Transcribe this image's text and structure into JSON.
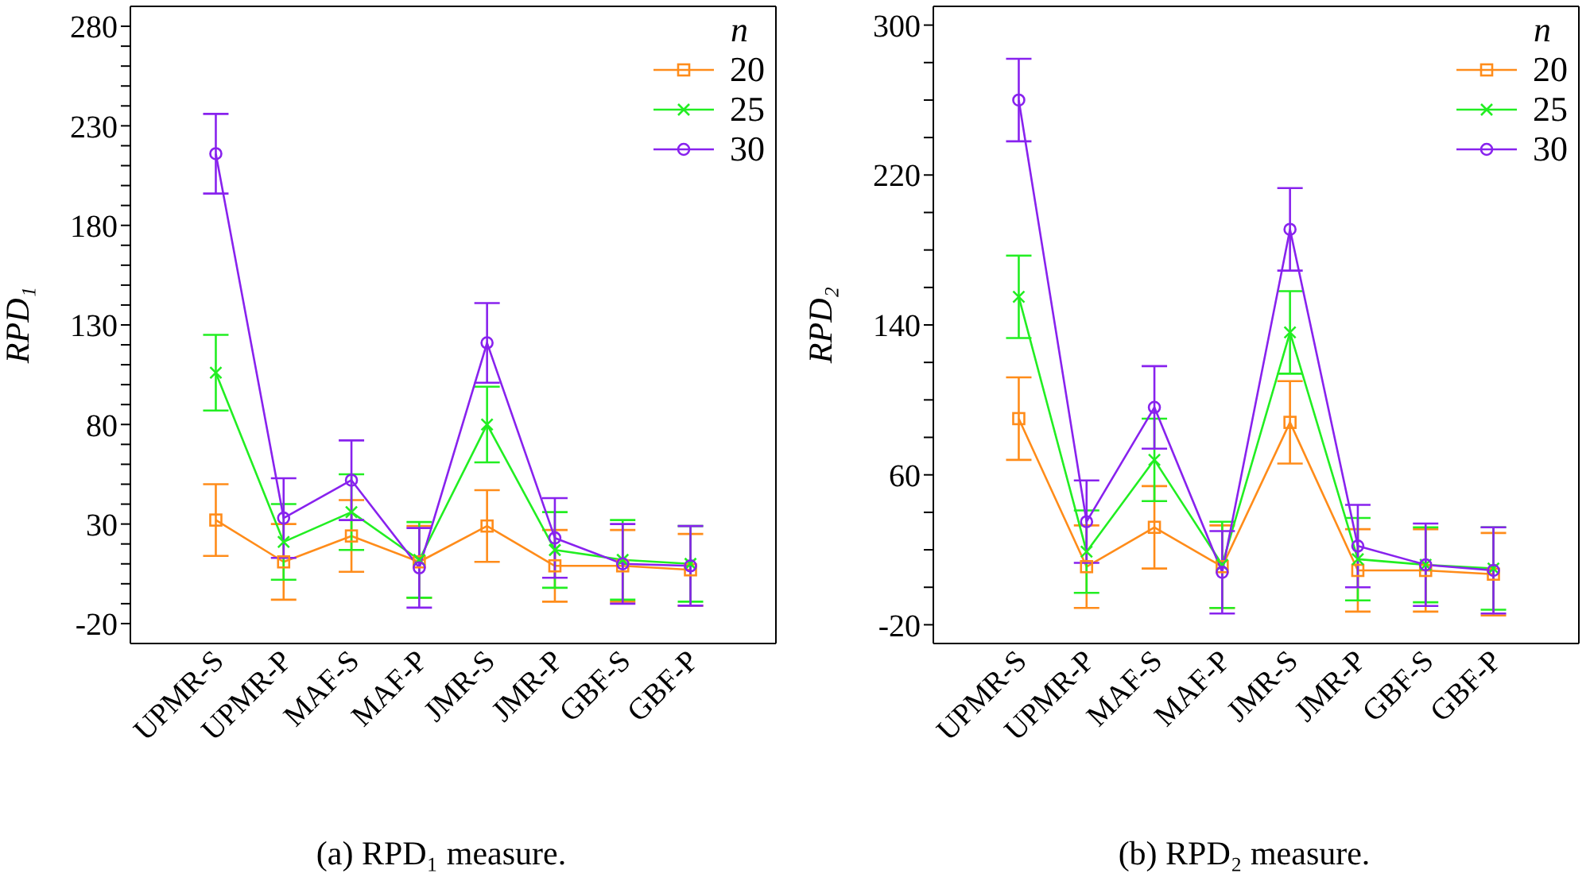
{
  "chart_data": [
    {
      "type": "line",
      "ylabel": "RPD₁",
      "legend_title": "n",
      "legend": "top right",
      "grid": false,
      "line_style": "solid",
      "categories": [
        "UPMR-S",
        "UPMR-P",
        "MAF-S",
        "MAF-P",
        "JMR-S",
        "JMR-P",
        "GBF-S",
        "GBF-P"
      ],
      "ylim": [
        -30,
        290
      ],
      "yticks": [
        -20,
        {
          "value": -10,
          "label": null
        },
        {
          "value": 0,
          "label": null
        },
        {
          "value": 10,
          "label": null
        },
        {
          "value": 20,
          "label": null
        },
        30,
        {
          "value": 40,
          "label": null
        },
        {
          "value": 50,
          "label": null
        },
        {
          "value": 60,
          "label": null
        },
        {
          "value": 70,
          "label": null
        },
        80,
        {
          "value": 90,
          "label": null
        },
        {
          "value": 100,
          "label": null
        },
        {
          "value": 110,
          "label": null
        },
        {
          "value": 120,
          "label": null
        },
        130,
        {
          "value": 140,
          "label": null
        },
        {
          "value": 150,
          "label": null
        },
        {
          "value": 160,
          "label": null
        },
        {
          "value": 170,
          "label": null
        },
        180,
        {
          "value": 190,
          "label": null
        },
        {
          "value": 200,
          "label": null
        },
        {
          "value": 210,
          "label": null
        },
        {
          "value": 220,
          "label": null
        },
        230,
        {
          "value": 240,
          "label": null
        },
        {
          "value": 250,
          "label": null
        },
        {
          "value": 260,
          "label": null
        },
        {
          "value": 270,
          "label": null
        },
        280
      ],
      "series": [
        {
          "name": "20",
          "color": "#ff8c1a",
          "marker": "square",
          "values": [
            32,
            11,
            24,
            11,
            29,
            9,
            9,
            7
          ],
          "errors": [
            18,
            19,
            18,
            18,
            18,
            18,
            18,
            18
          ]
        },
        {
          "name": "25",
          "color": "#22ee22",
          "marker": "cross",
          "values": [
            106,
            21,
            36,
            12,
            80,
            17,
            12,
            10
          ],
          "errors": [
            19,
            19,
            19,
            19,
            19,
            19,
            20,
            19
          ]
        },
        {
          "name": "30",
          "color": "#8822ee",
          "marker": "circle",
          "values": [
            216,
            33,
            52,
            8,
            121,
            23,
            10,
            9
          ],
          "errors": [
            20,
            20,
            20,
            20,
            20,
            20,
            20,
            20
          ]
        }
      ],
      "annotations": [
        "(a) RPD₁ measure."
      ]
    },
    {
      "type": "line",
      "ylabel": "RPD₂",
      "legend_title": "n",
      "legend": "top right",
      "grid": false,
      "line_style": "solid",
      "categories": [
        "UPMR-S",
        "UPMR-P",
        "MAF-S",
        "MAF-P",
        "JMR-S",
        "JMR-P",
        "GBF-S",
        "GBF-P"
      ],
      "ylim": [
        -30,
        310
      ],
      "yticks": [
        -20,
        {
          "value": 0,
          "label": null
        },
        {
          "value": 20,
          "label": null
        },
        {
          "value": 40,
          "label": null
        },
        60,
        {
          "value": 80,
          "label": null
        },
        {
          "value": 100,
          "label": null
        },
        {
          "value": 120,
          "label": null
        },
        140,
        {
          "value": 160,
          "label": null
        },
        {
          "value": 180,
          "label": null
        },
        {
          "value": 200,
          "label": null
        },
        220,
        {
          "value": 240,
          "label": null
        },
        {
          "value": 260,
          "label": null
        },
        {
          "value": 280,
          "label": null
        },
        300
      ],
      "series": [
        {
          "name": "20",
          "color": "#ff8c1a",
          "marker": "square",
          "values": [
            90,
            11,
            32,
            11,
            88,
            9,
            9,
            7
          ],
          "errors": [
            22,
            22,
            22,
            22,
            22,
            22,
            22,
            22
          ]
        },
        {
          "name": "25",
          "color": "#22ee22",
          "marker": "cross",
          "values": [
            155,
            19,
            68,
            12,
            136,
            15,
            12,
            10
          ],
          "errors": [
            22,
            22,
            22,
            23,
            22,
            22,
            20,
            22
          ]
        },
        {
          "name": "30",
          "color": "#8822ee",
          "marker": "circle",
          "values": [
            260,
            35,
            96,
            8,
            191,
            22,
            12,
            9
          ],
          "errors": [
            22,
            22,
            22,
            22,
            22,
            22,
            22,
            23
          ]
        }
      ],
      "annotations": [
        "(b) RPD₂ measure."
      ]
    }
  ]
}
